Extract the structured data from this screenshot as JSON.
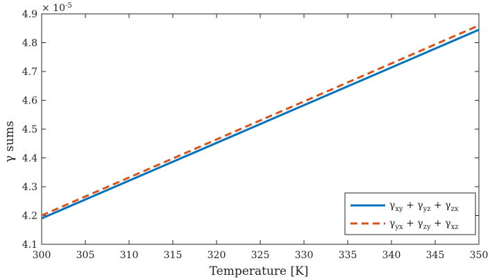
{
  "chart_data": {
    "type": "line",
    "xlabel": "Temperature [K]",
    "ylabel": "γ sums",
    "y_exponent_label": "× 10",
    "y_exponent_power": "-5",
    "xlim": [
      300,
      350
    ],
    "ylim": [
      4.1,
      4.9
    ],
    "x_ticks": [
      "300",
      "305",
      "310",
      "315",
      "320",
      "325",
      "330",
      "335",
      "340",
      "345",
      "350"
    ],
    "y_ticks": [
      "4.1",
      "4.2",
      "4.3",
      "4.4",
      "4.5",
      "4.6",
      "4.7",
      "4.8",
      "4.9"
    ],
    "x_tick_values": [
      300,
      305,
      310,
      315,
      320,
      325,
      330,
      335,
      340,
      345,
      350
    ],
    "y_tick_values": [
      4.1,
      4.2,
      4.3,
      4.4,
      4.5,
      4.6,
      4.7,
      4.8,
      4.9
    ],
    "legend_position": "bottom-right",
    "series": [
      {
        "legend": [
          {
            "t": "γ"
          },
          {
            "t": "xy",
            "sub": true
          },
          {
            "t": " + γ"
          },
          {
            "t": "yz",
            "sub": true
          },
          {
            "t": " + γ"
          },
          {
            "t": "zx",
            "sub": true
          }
        ],
        "color": "#0072BD",
        "dash": "solid",
        "x": [
          300,
          350
        ],
        "y": [
          4.19,
          4.845
        ]
      },
      {
        "legend": [
          {
            "t": "γ"
          },
          {
            "t": "yx",
            "sub": true
          },
          {
            "t": " + γ"
          },
          {
            "t": "zy",
            "sub": true
          },
          {
            "t": " + γ"
          },
          {
            "t": "xz",
            "sub": true
          }
        ],
        "color": "#D95319",
        "dash": "dashed",
        "x": [
          300,
          350
        ],
        "y": [
          4.2,
          4.86
        ]
      }
    ]
  }
}
